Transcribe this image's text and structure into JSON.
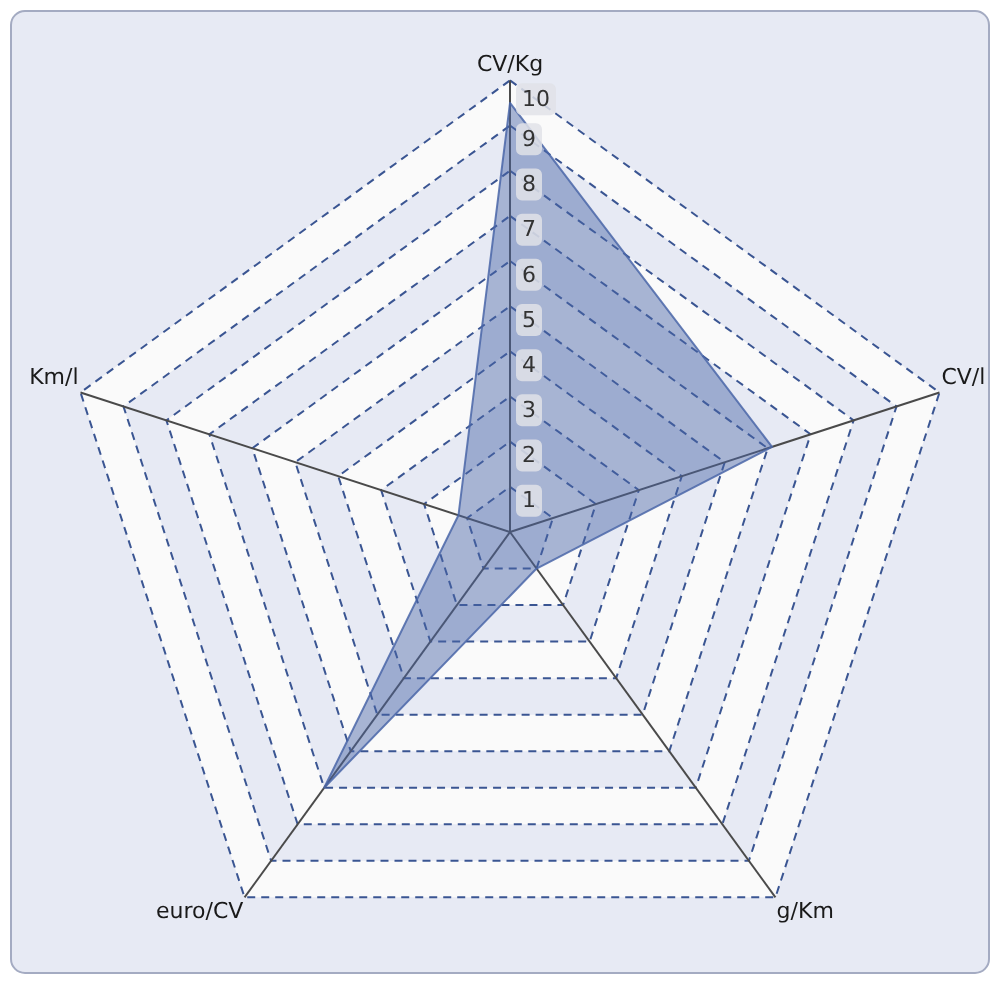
{
  "chart_data": {
    "type": "radar",
    "categories": [
      "CV/Kg",
      "CV/l",
      "g/Km",
      "euro/CV",
      "Km/l"
    ],
    "series": [
      {
        "color": "#4a66a8",
        "values": [
          9.5,
          6.1,
          1,
          7,
          1.2
        ]
      }
    ],
    "ylim": [
      0,
      10
    ],
    "yticks": [
      1,
      2,
      3,
      4,
      5,
      6,
      7,
      8,
      9,
      10
    ],
    "grid": true
  }
}
